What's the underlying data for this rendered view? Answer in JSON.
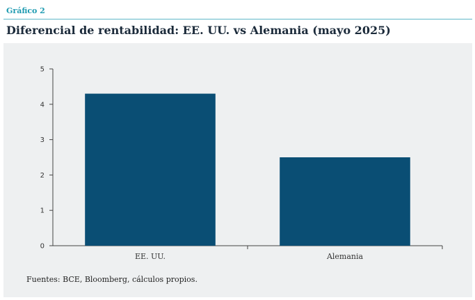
{
  "figure": {
    "kicker": "Gráfico 2",
    "title": "Diferencial de rentabilidad: EE. UU. vs Alemania (mayo 2025)",
    "source": "Fuentes: BCE, Bloomberg, cálculos propios."
  },
  "colors": {
    "bar": "#0a4e74",
    "kicker": "#1f9bb1",
    "panel": "#eef0f1"
  },
  "chart_data": {
    "type": "bar",
    "categories": [
      "EE. UU.",
      "Alemania"
    ],
    "values": [
      4.3,
      2.5
    ],
    "title": "Diferencial de rentabilidad: EE. UU. vs Alemania (mayo 2025)",
    "xlabel": "",
    "ylabel": "",
    "ylim": [
      0,
      5
    ],
    "yticks": [
      0,
      1,
      2,
      3,
      4,
      5
    ],
    "grid": false,
    "legend": "none"
  }
}
